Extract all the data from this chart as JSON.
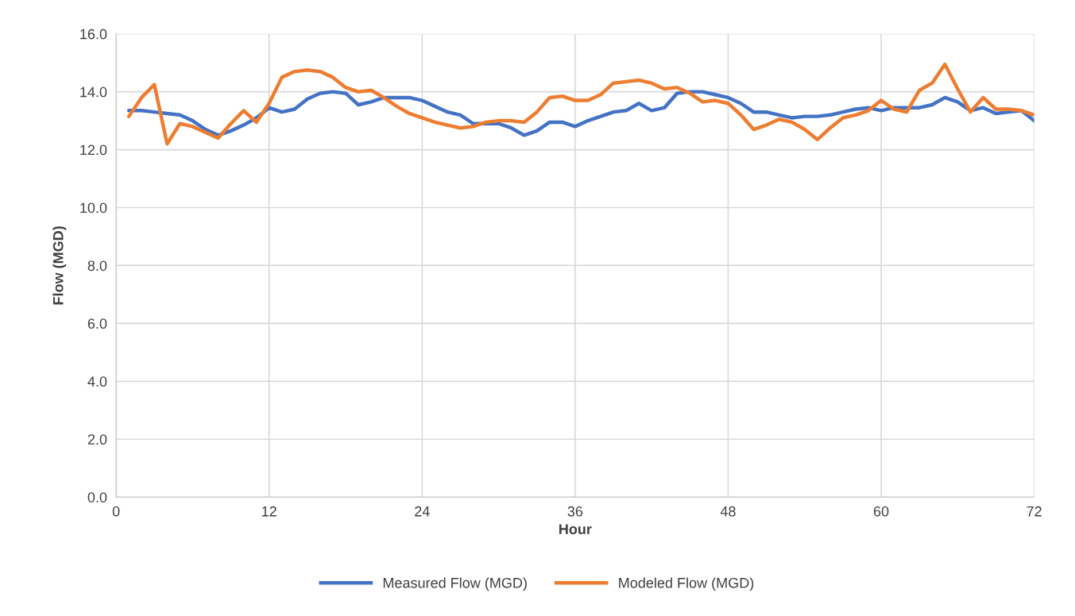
{
  "chart_data": {
    "type": "line",
    "xlabel": "Hour",
    "ylabel": "Flow (MGD)",
    "x": [
      1,
      2,
      3,
      4,
      5,
      6,
      7,
      8,
      9,
      10,
      11,
      12,
      13,
      14,
      15,
      16,
      17,
      18,
      19,
      20,
      21,
      22,
      23,
      24,
      25,
      26,
      27,
      28,
      29,
      30,
      31,
      32,
      33,
      34,
      35,
      36,
      37,
      38,
      39,
      40,
      41,
      42,
      43,
      44,
      45,
      46,
      47,
      48,
      49,
      50,
      51,
      52,
      53,
      54,
      55,
      56,
      57,
      58,
      59,
      60,
      61,
      62,
      63,
      64,
      65,
      66,
      67,
      68,
      69,
      70,
      71,
      72
    ],
    "series": [
      {
        "name": "Measured Flow (MGD)",
        "color": "#4472c4",
        "values": [
          13.35,
          13.35,
          13.3,
          13.25,
          13.2,
          13.0,
          12.7,
          12.5,
          12.65,
          12.85,
          13.1,
          13.45,
          13.3,
          13.4,
          13.75,
          13.95,
          14.0,
          13.95,
          13.55,
          13.65,
          13.8,
          13.8,
          13.8,
          13.7,
          13.5,
          13.3,
          13.2,
          12.9,
          12.9,
          12.9,
          12.75,
          12.5,
          12.65,
          12.95,
          12.95,
          12.8,
          13.0,
          13.15,
          13.3,
          13.35,
          13.6,
          13.35,
          13.45,
          13.95,
          14.0,
          14.0,
          13.9,
          13.8,
          13.6,
          13.3,
          13.3,
          13.2,
          13.1,
          13.15,
          13.15,
          13.2,
          13.3,
          13.4,
          13.45,
          13.35,
          13.45,
          13.45,
          13.45,
          13.55,
          13.8,
          13.65,
          13.35,
          13.45,
          13.25,
          13.3,
          13.35,
          13.0
        ]
      },
      {
        "name": "Modeled Flow (MGD)",
        "color": "#ed7d31",
        "values": [
          13.15,
          13.8,
          14.25,
          12.2,
          12.9,
          12.8,
          12.6,
          12.4,
          12.9,
          13.35,
          12.95,
          13.6,
          14.5,
          14.7,
          14.75,
          14.7,
          14.5,
          14.15,
          14.0,
          14.05,
          13.8,
          13.5,
          13.25,
          13.1,
          12.95,
          12.85,
          12.75,
          12.8,
          12.95,
          13.0,
          13.0,
          12.95,
          13.3,
          13.8,
          13.85,
          13.7,
          13.7,
          13.9,
          14.3,
          14.35,
          14.4,
          14.3,
          14.1,
          14.15,
          13.95,
          13.65,
          13.7,
          13.6,
          13.2,
          12.7,
          12.85,
          13.05,
          12.95,
          12.7,
          12.35,
          12.75,
          13.1,
          13.2,
          13.35,
          13.7,
          13.4,
          13.3,
          14.05,
          14.3,
          14.95,
          14.1,
          13.3,
          13.8,
          13.4,
          13.4,
          13.35,
          13.2
        ]
      }
    ],
    "xlim": [
      0,
      72
    ],
    "xticks": [
      0,
      12,
      24,
      36,
      48,
      60,
      72
    ],
    "ylim": [
      0,
      16
    ],
    "yticks": [
      {
        "value": 0,
        "label": "0.0"
      },
      {
        "value": 2,
        "label": "2.0"
      },
      {
        "value": 4,
        "label": "4.0"
      },
      {
        "value": 6,
        "label": "6.0"
      },
      {
        "value": 8,
        "label": "8.0"
      },
      {
        "value": 10,
        "label": "10.0"
      },
      {
        "value": 12,
        "label": "12.0"
      },
      {
        "value": 14,
        "label": "14.0"
      },
      {
        "value": 16,
        "label": "16.0"
      }
    ],
    "grid": true,
    "legend": "bottom",
    "marker": "none",
    "line_style": "solid"
  }
}
